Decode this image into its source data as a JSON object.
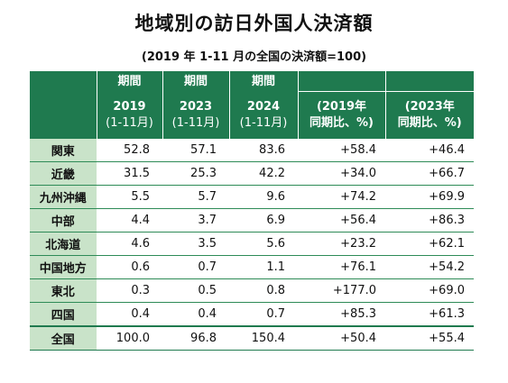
{
  "title": "地域別の訪日外国人決済額",
  "subtitle": "(2019 年 1-11 月の全国の決済額=100)",
  "header": {
    "period_label": "期間",
    "cols": [
      {
        "year": "2019",
        "range": "(1-11月)"
      },
      {
        "year": "2023",
        "range": "(1-11月)"
      },
      {
        "year": "2024",
        "range": "(1-11月)"
      }
    ],
    "ratios": [
      {
        "line1": "(2019年",
        "line2": "同期比、%)"
      },
      {
        "line1": "(2023年",
        "line2": "同期比、%)"
      }
    ]
  },
  "rows": [
    {
      "region": "関東",
      "v2019": "52.8",
      "v2023": "57.1",
      "v2024": "83.6",
      "vs2019": "+58.4",
      "vs2023": "+46.4"
    },
    {
      "region": "近畿",
      "v2019": "31.5",
      "v2023": "25.3",
      "v2024": "42.2",
      "vs2019": "+34.0",
      "vs2023": "+66.7"
    },
    {
      "region": "九州沖縄",
      "v2019": "5.5",
      "v2023": "5.7",
      "v2024": "9.6",
      "vs2019": "+74.2",
      "vs2023": "+69.9"
    },
    {
      "region": "中部",
      "v2019": "4.4",
      "v2023": "3.7",
      "v2024": "6.9",
      "vs2019": "+56.4",
      "vs2023": "+86.3"
    },
    {
      "region": "北海道",
      "v2019": "4.6",
      "v2023": "3.5",
      "v2024": "5.6",
      "vs2019": "+23.2",
      "vs2023": "+62.1"
    },
    {
      "region": "中国地方",
      "v2019": "0.6",
      "v2023": "0.7",
      "v2024": "1.1",
      "vs2019": "+76.1",
      "vs2023": "+54.2"
    },
    {
      "region": "東北",
      "v2019": "0.3",
      "v2023": "0.5",
      "v2024": "0.8",
      "vs2019": "+177.0",
      "vs2023": "+69.0"
    },
    {
      "region": "四国",
      "v2019": "0.4",
      "v2023": "0.4",
      "v2024": "0.7",
      "vs2019": "+85.3",
      "vs2023": "+61.3"
    }
  ],
  "total": {
    "region": "全国",
    "v2019": "100.0",
    "v2023": "96.8",
    "v2024": "150.4",
    "vs2019": "+50.4",
    "vs2023": "+55.4"
  },
  "colors": {
    "header_bg": "#1f7a4f",
    "label_bg": "#c9e3c9",
    "rule": "#2e8b57"
  }
}
